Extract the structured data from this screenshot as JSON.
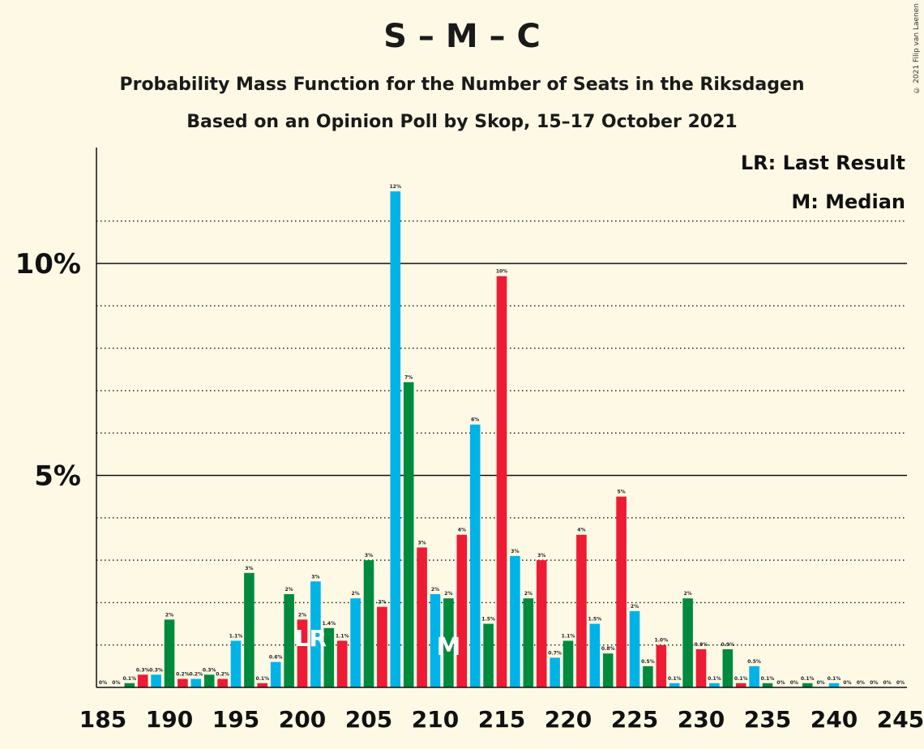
{
  "title": "S – M – C",
  "subtitle1": "Probability Mass Function for the Number of Seats in the Riksdagen",
  "subtitle2": "Based on an Opinion Poll by Skop, 15–17 October 2021",
  "copyright": "© 2021 Filip van Laenen",
  "legend": {
    "lr": "LR: Last Result",
    "m": "M: Median"
  },
  "markers": {
    "lr_label": "LR",
    "lr_seat": 201,
    "m_label": "M",
    "m_seat": 211
  },
  "colors": {
    "red": "#ED1B34",
    "blue": "#00B3E6",
    "green": "#008A3E",
    "background": "#FEF9E5"
  },
  "chart_data": {
    "type": "bar",
    "x": [
      185,
      186,
      187,
      188,
      189,
      190,
      191,
      192,
      193,
      194,
      195,
      196,
      197,
      198,
      199,
      200,
      201,
      202,
      203,
      204,
      205,
      206,
      207,
      208,
      209,
      210,
      211,
      212,
      213,
      214,
      215,
      216,
      217,
      218,
      219,
      220,
      221,
      222,
      223,
      224,
      225,
      226,
      227,
      228,
      229,
      230,
      231,
      232,
      233,
      234,
      235,
      236,
      237,
      238,
      239,
      240,
      241,
      242,
      243,
      244,
      245
    ],
    "values": [
      0,
      0,
      0.1,
      0.3,
      0.3,
      1.6,
      0.2,
      0.2,
      0.3,
      0.2,
      1.1,
      2.7,
      0.1,
      0.6,
      2.2,
      1.6,
      2.5,
      1.4,
      1.1,
      2.1,
      3.0,
      1.9,
      11.7,
      7.2,
      3.3,
      2.2,
      2.1,
      3.6,
      6.2,
      1.5,
      9.7,
      3.1,
      2.1,
      3.0,
      0.7,
      1.1,
      3.6,
      1.5,
      0.8,
      4.5,
      1.8,
      0.5,
      1.0,
      0.1,
      2.1,
      0.9,
      0.1,
      0.9,
      0.1,
      0.5,
      0.1,
      0,
      0,
      0.1,
      0,
      0.1,
      0,
      0,
      0,
      0,
      0
    ],
    "labels": [
      "0%",
      "0%",
      "0.1%",
      "0.3%",
      "0.3%",
      "2%",
      "0.2%",
      "0.2%",
      "0.3%",
      "0.2%",
      "1.1%",
      "3%",
      "0.1%",
      "0.6%",
      "2%",
      "2%",
      "3%",
      "1.4%",
      "1.1%",
      "2%",
      "3%",
      "2%",
      "12%",
      "7%",
      "3%",
      "2%",
      "2%",
      "4%",
      "6%",
      "1.5%",
      "10%",
      "3%",
      "2%",
      "3%",
      "0.7%",
      "1.1%",
      "4%",
      "1.5%",
      "0.8%",
      "5%",
      "2%",
      "0.5%",
      "1.0%",
      "0.1%",
      "2%",
      "0.9%",
      "0.1%",
      "0.9%",
      "0.1%",
      "0.5%",
      "0.1%",
      "0%",
      "0%",
      "0.1%",
      "0%",
      "0.1%",
      "0%",
      "0%",
      "0%",
      "0%",
      "0%"
    ],
    "colors": [
      "red",
      "blue",
      "green"
    ],
    "xticks": [
      185,
      190,
      195,
      200,
      205,
      210,
      215,
      220,
      225,
      230,
      235,
      240,
      245
    ],
    "yticks": [
      {
        "value": 5,
        "label": "5%"
      },
      {
        "value": 10,
        "label": "10%"
      }
    ],
    "ylim": [
      0,
      12.7
    ],
    "grid": "dotted every 1%, solid at 5% and 10%"
  }
}
